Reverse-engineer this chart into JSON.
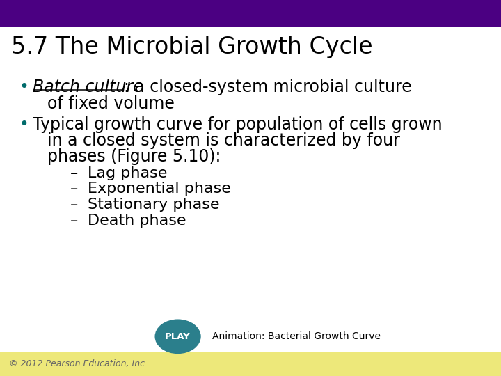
{
  "title": "5.7 The Microbial Growth Cycle",
  "title_fontsize": 24,
  "title_color": "#000000",
  "top_bar_color": "#4B0082",
  "top_bar_height": 0.072,
  "bottom_bar_color": "#EDE87A",
  "bottom_bar_height": 0.065,
  "background_color": "#FFFFFF",
  "bullet_color": "#006B6B",
  "body_color": "#000000",
  "batch_culture_text": "Batch culture",
  "bullet1_rest": ": a closed-system microbial culture",
  "bullet1_cont": "of fixed volume",
  "bullet2_line1": "Typical growth curve for population of cells grown",
  "bullet2_line2": "in a closed system is characterized by four",
  "bullet2_line3": "phases (Figure 5.10):",
  "sub_bullets": [
    "Lag phase",
    "Exponential phase",
    "Stationary phase",
    "Death phase"
  ],
  "play_button_color": "#2B7F8C",
  "play_text": "PLAY",
  "play_text_color": "#FFFFFF",
  "animation_text": "Animation: Bacterial Growth Curve",
  "animation_fontsize": 10,
  "copyright_text": "© 2012 Pearson Education, Inc.",
  "copyright_fontsize": 9,
  "copyright_color": "#666666",
  "main_fontsize": 17,
  "sub_fontsize": 16
}
